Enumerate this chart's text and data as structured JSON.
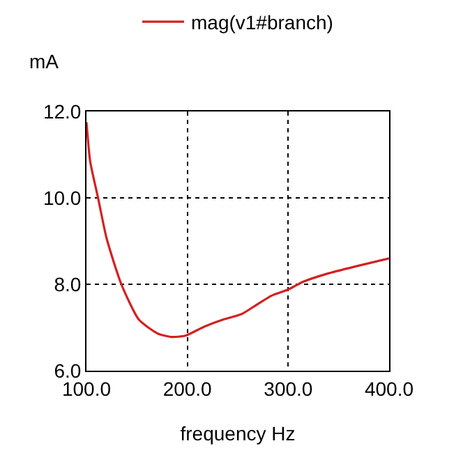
{
  "chart_data": {
    "type": "line",
    "xlabel": "frequency Hz",
    "ylabel": "mA",
    "x": [
      100,
      103.7,
      111.5,
      120,
      134.6,
      152,
      170.7,
      184.5,
      198,
      216.9,
      235.3,
      253.8,
      267.7,
      283.8,
      300,
      315,
      338,
      366,
      400
    ],
    "series": [
      {
        "name": "mag(v1#branch)",
        "color": "#d42020",
        "values": [
          11.75,
          10.84,
          10.0,
          9.06,
          8.0,
          7.18,
          6.86,
          6.78,
          6.81,
          7.02,
          7.18,
          7.31,
          7.51,
          7.74,
          7.88,
          8.06,
          8.24,
          8.41,
          8.6
        ]
      }
    ],
    "xlim": [
      100,
      400
    ],
    "ylim": [
      6,
      12
    ],
    "xticks": [
      {
        "value": 100,
        "label": "100.0"
      },
      {
        "value": 200,
        "label": "200.0"
      },
      {
        "value": 300,
        "label": "300.0"
      },
      {
        "value": 400,
        "label": "400.0"
      }
    ],
    "yticks": [
      {
        "value": 6,
        "label": "6.0"
      },
      {
        "value": 8,
        "label": "8.0"
      },
      {
        "value": 10,
        "label": "10.0"
      },
      {
        "value": 12,
        "label": "12.0"
      }
    ],
    "grid": true,
    "legend": "top",
    "marker": "none",
    "line_style": "solid"
  }
}
